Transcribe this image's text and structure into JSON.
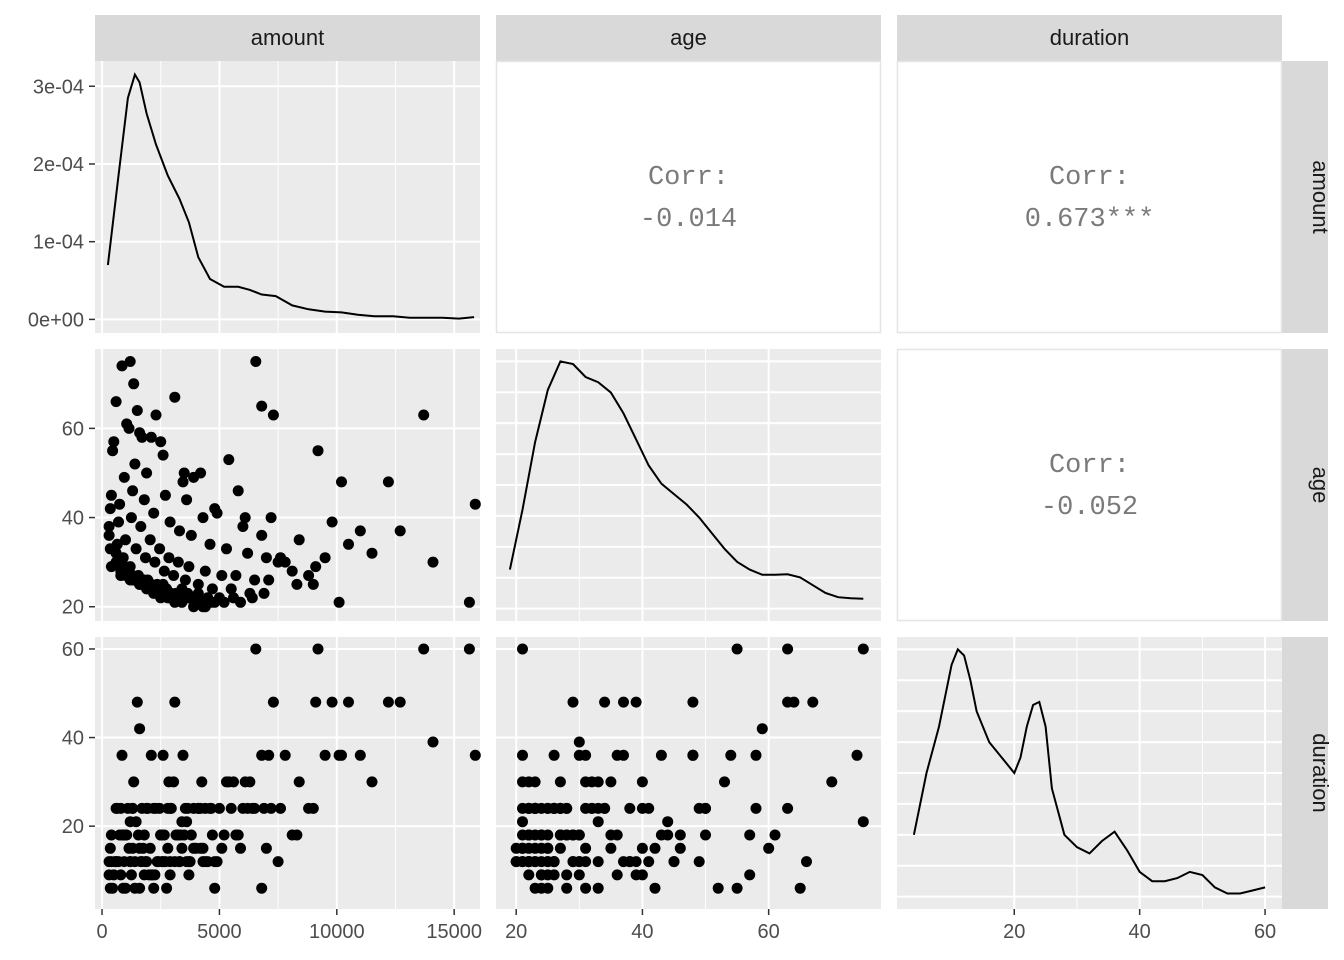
{
  "colors": {
    "panel_bg": "#ebebeb",
    "grid_major": "#ffffff",
    "strip_bg": "#d9d9d9",
    "strip_text": "#1a1a1a",
    "tick_text": "#4d4d4d",
    "corr_text": "#7a7a7a",
    "ink": "#000000"
  },
  "chart_data": {
    "type": "scatter",
    "title": "",
    "layout": "pairs-matrix",
    "variables": [
      "amount",
      "age",
      "duration"
    ],
    "column_strips": [
      "amount",
      "age",
      "duration"
    ],
    "row_strips": [
      "amount",
      "age",
      "duration"
    ],
    "grid": true,
    "axes": {
      "amount": {
        "range": [
          -300,
          16100
        ],
        "ticks": [
          0,
          5000,
          10000,
          15000
        ],
        "tick_labels": [
          "0",
          "5000",
          "10000",
          "15000"
        ]
      },
      "age": {
        "range": [
          16.8,
          77.8
        ],
        "ticks": [
          20,
          40,
          60
        ],
        "tick_labels": [
          "20",
          "40",
          "60"
        ]
      },
      "duration": {
        "range": [
          1.3,
          62.7
        ],
        "ticks": [
          20,
          40,
          60
        ],
        "tick_labels": [
          "20",
          "40",
          "60"
        ]
      },
      "density_amount_y": {
        "range": [
          -1.75e-05,
          0.0003325
        ],
        "ticks": [
          0,
          0.0001,
          0.0002,
          0.0003
        ],
        "tick_labels": [
          "0e+00",
          "1e-04",
          "2e-04",
          "3e-04"
        ]
      }
    },
    "correlations": [
      {
        "row": "amount",
        "col": "age",
        "label": "Corr:",
        "value": "-0.014"
      },
      {
        "row": "amount",
        "col": "duration",
        "label": "Corr:",
        "value": "0.673***"
      },
      {
        "row": "age",
        "col": "duration",
        "label": "Corr:",
        "value": "-0.052"
      }
    ],
    "densities": {
      "amount": {
        "x": [
          250,
          700,
          1100,
          1400,
          1600,
          1900,
          2300,
          2800,
          3300,
          3700,
          4100,
          4600,
          5200,
          5800,
          6300,
          6800,
          7400,
          8100,
          8800,
          9500,
          10200,
          10900,
          11600,
          12400,
          13100,
          13800,
          14500,
          15200,
          15850
        ],
        "y": [
          7e-05,
          0.000185,
          0.000285,
          0.000315,
          0.000305,
          0.000265,
          0.000225,
          0.000185,
          0.000155,
          0.000125,
          8e-05,
          5.2e-05,
          4.2e-05,
          4.2e-05,
          3.8e-05,
          3.2e-05,
          3e-05,
          1.8e-05,
          1.3e-05,
          1e-05,
          9e-06,
          6e-06,
          4e-06,
          4e-06,
          2e-06,
          2e-06,
          2e-06,
          1e-06,
          3e-06
        ]
      },
      "age": {
        "x": [
          19,
          21,
          23,
          25,
          27,
          29,
          31,
          33,
          35,
          37,
          39,
          41,
          43,
          45,
          47,
          49,
          51,
          53,
          55,
          57,
          59,
          61,
          63,
          65,
          67,
          69,
          71,
          73,
          75
        ],
        "y": [
          0.0075,
          0.019,
          0.032,
          0.042,
          0.0475,
          0.047,
          0.0445,
          0.0435,
          0.0415,
          0.0375,
          0.0325,
          0.0275,
          0.024,
          0.022,
          0.02,
          0.0175,
          0.0145,
          0.0115,
          0.009,
          0.0075,
          0.0065,
          0.0065,
          0.0066,
          0.006,
          0.0045,
          0.003,
          0.0022,
          0.002,
          0.0019
        ]
      },
      "duration": {
        "x": [
          4,
          6,
          8,
          10,
          11,
          12,
          13,
          14,
          16,
          18,
          20,
          21,
          22,
          23,
          24,
          25,
          26,
          28,
          30,
          32,
          34,
          36,
          38,
          40,
          42,
          44,
          46,
          48,
          50,
          52,
          54,
          56,
          58,
          60
        ],
        "y": [
          0.02,
          0.04,
          0.055,
          0.075,
          0.08,
          0.078,
          0.07,
          0.06,
          0.05,
          0.045,
          0.04,
          0.045,
          0.055,
          0.062,
          0.063,
          0.055,
          0.035,
          0.02,
          0.016,
          0.014,
          0.018,
          0.021,
          0.015,
          0.008,
          0.005,
          0.005,
          0.006,
          0.008,
          0.007,
          0.003,
          0.001,
          0.001,
          0.002,
          0.003
        ]
      }
    },
    "observations": {
      "amount": [
        850,
        1200,
        1350,
        1500,
        1600,
        2100,
        2300,
        2500,
        3100,
        3450,
        4200,
        5400,
        6550,
        7300,
        9200,
        10200,
        12200,
        13700,
        15650,
        15900,
        600,
        1050,
        1700,
        2600,
        3900,
        5800,
        7200,
        8400,
        9800,
        11000,
        12700,
        14100,
        500,
        1150,
        1900,
        2700,
        3600,
        4300,
        4900,
        6000,
        6800,
        7500,
        8100,
        8800,
        9500,
        10500,
        11500,
        1400,
        3500,
        4800,
        6100,
        7600,
        450,
        950,
        1300,
        1800,
        2200,
        2900,
        3300,
        3800,
        4600,
        5300,
        6200,
        7000,
        7800,
        9100,
        400,
        750,
        1250,
        1650,
        2050,
        2450,
        2850,
        3250,
        3700,
        4400,
        5100,
        5700,
        6500,
        7100,
        8300,
        9000,
        10100,
        350,
        700,
        1000,
        1450,
        1850,
        2250,
        2650,
        3050,
        3550,
        4100,
        4700,
        5500,
        6300,
        6900,
        300,
        650,
        900,
        1200,
        1550,
        1950,
        2350,
        2750,
        3150,
        3650,
        4000,
        4500,
        5000,
        5600,
        6400,
        300,
        550,
        850,
        1100,
        1400,
        1750,
        2150,
        2550,
        2950,
        3350,
        3750,
        4250,
        4650,
        5200,
        5900,
        350,
        600,
        800,
        1000,
        1300,
        1600,
        1900,
        2200,
        2500,
        2800,
        3100,
        3400,
        3900,
        4400,
        600,
        900,
        1300,
        1700,
        2100,
        2500,
        2900,
        3300,
        3700,
        4200,
        4800,
        400,
        800,
        1200,
        1600,
        2000,
        2400,
        2800,
        3200,
        3600,
        1000,
        1800,
        2600,
        3400,
        4100,
        2900,
        6800,
        4300
      ],
      "age": [
        74,
        75,
        70,
        64,
        59,
        58,
        63,
        57,
        67,
        48,
        50,
        53,
        75,
        63,
        55,
        48,
        48,
        63,
        21,
        43,
        66,
        61,
        58,
        54,
        49,
        46,
        40,
        35,
        39,
        37,
        37,
        30,
        57,
        60,
        50,
        45,
        44,
        40,
        41,
        38,
        36,
        30,
        28,
        27,
        31,
        34,
        32,
        52,
        50,
        42,
        40,
        31,
        55,
        49,
        46,
        44,
        41,
        39,
        37,
        36,
        34,
        33,
        32,
        31,
        30,
        29,
        45,
        43,
        40,
        38,
        35,
        33,
        31,
        30,
        29,
        28,
        27,
        27,
        26,
        26,
        25,
        25,
        21,
        42,
        39,
        35,
        33,
        31,
        30,
        28,
        27,
        26,
        25,
        24,
        24,
        23,
        23,
        38,
        34,
        31,
        29,
        27,
        26,
        25,
        24,
        23,
        23,
        22,
        22,
        22,
        22,
        22,
        36,
        33,
        30,
        28,
        26,
        25,
        24,
        23,
        23,
        22,
        22,
        21,
        21,
        21,
        21,
        33,
        30,
        28,
        27,
        26,
        25,
        24,
        23,
        22,
        22,
        21,
        21,
        20,
        20,
        32,
        29,
        27,
        26,
        25,
        24,
        23,
        22,
        22,
        21,
        21,
        29,
        27,
        26,
        25,
        24,
        23,
        23,
        22,
        22,
        28,
        26,
        25,
        24,
        23,
        22,
        65,
        20
      ],
      "duration": [
        36,
        21,
        30,
        48,
        42,
        36,
        24,
        18,
        48,
        36,
        24,
        30,
        60,
        48,
        60,
        36,
        48,
        60,
        60,
        36,
        12,
        18,
        24,
        36,
        24,
        18,
        24,
        30,
        48,
        36,
        48,
        39,
        9,
        15,
        24,
        12,
        21,
        15,
        12,
        24,
        36,
        12,
        18,
        24,
        36,
        48,
        30,
        6,
        18,
        6,
        30,
        24,
        6,
        12,
        15,
        18,
        24,
        9,
        12,
        18,
        24,
        30,
        24,
        15,
        36,
        48,
        12,
        18,
        9,
        12,
        15,
        24,
        30,
        18,
        12,
        24,
        15,
        18,
        24,
        36,
        18,
        24,
        36,
        15,
        12,
        18,
        21,
        12,
        9,
        18,
        30,
        24,
        24,
        18,
        24,
        30,
        24,
        12,
        24,
        6,
        12,
        18,
        24,
        12,
        6,
        18,
        24,
        15,
        12,
        24,
        30,
        24,
        9,
        12,
        18,
        24,
        12,
        15,
        9,
        12,
        24,
        18,
        12,
        30,
        24,
        18,
        15,
        6,
        12,
        9,
        18,
        24,
        15,
        12,
        6,
        18,
        24,
        12,
        21,
        15,
        12,
        24,
        18,
        24,
        12,
        9,
        18,
        24,
        12,
        9,
        15,
        12,
        18,
        24,
        12,
        6,
        9,
        12,
        15,
        18,
        12,
        6,
        9,
        12,
        15,
        24,
        12,
        6,
        12,
        36,
        30,
        24
      ]
    }
  }
}
